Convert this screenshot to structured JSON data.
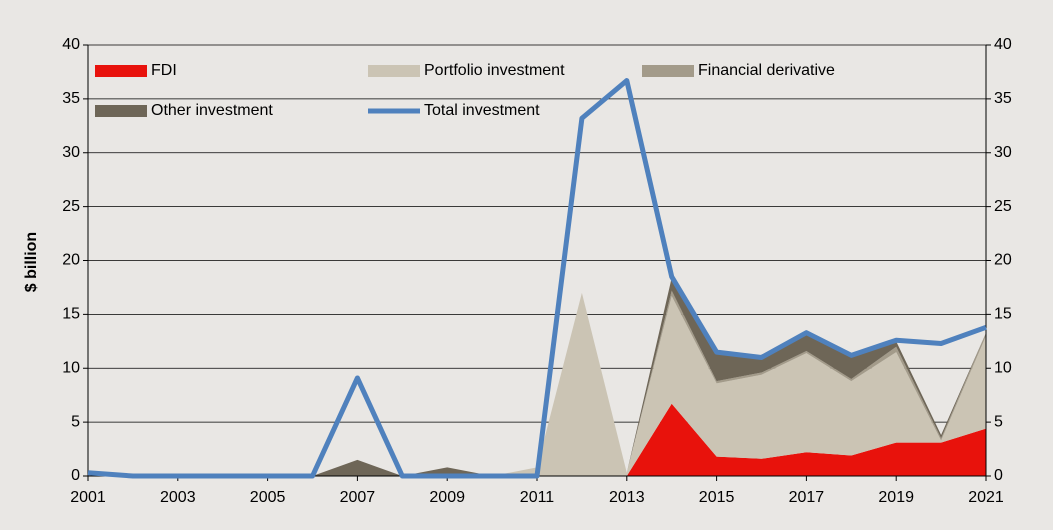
{
  "chart_data": {
    "type": "stacked_area_line",
    "y_label": "$ billion",
    "x": [
      2001,
      2002,
      2003,
      2004,
      2005,
      2006,
      2007,
      2008,
      2009,
      2010,
      2011,
      2012,
      2013,
      2014,
      2015,
      2016,
      2017,
      2018,
      2019,
      2020,
      2021
    ],
    "xlim": [
      2001,
      2021
    ],
    "xticks": [
      2001,
      2003,
      2005,
      2007,
      2009,
      2011,
      2013,
      2015,
      2017,
      2019,
      2021
    ],
    "ylim": [
      0,
      40
    ],
    "yticks": [
      0,
      5,
      10,
      15,
      20,
      25,
      30,
      35,
      40
    ],
    "y2lim": [
      0,
      40
    ],
    "y2ticks": [
      0,
      5,
      10,
      15,
      20,
      25,
      30,
      35,
      40
    ],
    "grid": true,
    "legend": "upper left",
    "series": [
      {
        "name": "FDI",
        "color": "#e8120c",
        "values": [
          0,
          0,
          0,
          0,
          0,
          0,
          0,
          0,
          0,
          0,
          0,
          0,
          0,
          6.7,
          1.8,
          1.6,
          2.2,
          1.9,
          3.1,
          3.1,
          4.4
        ]
      },
      {
        "name": "Portfolio investment",
        "color": "#cbc4b4",
        "values": [
          0,
          0,
          0,
          0,
          0,
          0,
          0,
          0,
          0,
          0,
          0.8,
          17,
          0.3,
          10,
          6.8,
          7.8,
          9.2,
          6.9,
          8.4,
          0.2,
          8.6
        ]
      },
      {
        "name": "Financial derivative",
        "color": "#a39b8a",
        "values": [
          0,
          0,
          0,
          0,
          0,
          0,
          0,
          0,
          0,
          0,
          0,
          0,
          0,
          0.5,
          0.2,
          0.2,
          0.2,
          0.2,
          0.5,
          0.2,
          0.3
        ]
      },
      {
        "name": "Other investment",
        "color": "#6e6657",
        "values": [
          0,
          0,
          0,
          0,
          0,
          0,
          1.5,
          0,
          0.8,
          0,
          0,
          0,
          0,
          1.2,
          2.6,
          1.3,
          1.7,
          2.2,
          0.5,
          0.3,
          0
        ]
      },
      {
        "name": "Total investment",
        "color": "#4f81bd",
        "line": true,
        "values": [
          0.3,
          0,
          0,
          0,
          0,
          0,
          9.1,
          0,
          0,
          0,
          0,
          33.2,
          36.7,
          18.5,
          11.5,
          11,
          13.3,
          11.2,
          12.6,
          12.3,
          13.8
        ]
      }
    ]
  }
}
